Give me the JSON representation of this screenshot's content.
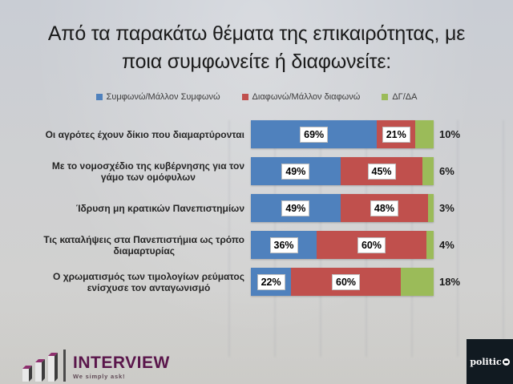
{
  "title": {
    "line1": "Από τα παρακάτω θέματα της επικαιρότητας, με",
    "line2": "ποια συμφωνείτε ή διαφωνείτε:"
  },
  "legend": [
    {
      "label": "Συμφωνώ/Μάλλον Συμφωνώ",
      "color": "#4f81bd"
    },
    {
      "label": "Διαφωνώ/Μάλλον διαφωνώ",
      "color": "#c0504d"
    },
    {
      "label": "ΔΓ/ΔΑ",
      "color": "#9bbb59"
    }
  ],
  "chart_data": {
    "type": "bar",
    "orientation": "horizontal",
    "stacked": true,
    "title": "Από τα παρακάτω θέματα της επικαιρότητας, με ποια συμφωνείτε ή διαφωνείτε:",
    "categories": [
      "Οι αγρότες έχουν δίκιο που διαμαρτύρονται",
      "Με το νομοσχέδιο της κυβέρνησης για τον γάμο των ομόφυλων",
      "Ίδρυση μη κρατικών Πανεπιστημίων",
      "Τις καταλήψεις στα Πανεπιστήμια ως τρόπο διαμαρτυρίας",
      "Ο χρωματισμός των τιμολογίων ρεύματος ενίσχυσε τον ανταγωνισμό"
    ],
    "category_lines": [
      [
        "Οι αγρότες έχουν δίκιο που διαμαρτύρονται"
      ],
      [
        "Με το νομοσχέδιο της κυβέρνησης για τον",
        "γάμο των ομόφυλων"
      ],
      [
        "Ίδρυση μη κρατικών Πανεπιστημίων"
      ],
      [
        "Τις καταλήψεις στα Πανεπιστήμια ως τρόπο",
        "διαμαρτυρίας"
      ],
      [
        "Ο χρωματισμός των τιμολογίων ρεύματος",
        "ενίσχυσε τον ανταγωνισμό"
      ]
    ],
    "series": [
      {
        "name": "Συμφωνώ/Μάλλον Συμφωνώ",
        "color": "#4f81bd",
        "values": [
          69,
          49,
          49,
          36,
          22
        ]
      },
      {
        "name": "Διαφωνώ/Μάλλον διαφωνώ",
        "color": "#c0504d",
        "values": [
          21,
          45,
          48,
          60,
          60
        ]
      },
      {
        "name": "ΔΓ/ΔΑ",
        "color": "#9bbb59",
        "values": [
          10,
          6,
          3,
          4,
          18
        ]
      }
    ],
    "value_suffix": "%",
    "xlim": [
      0,
      100
    ],
    "legend_position": "top",
    "grid": false,
    "value_label_style": "series 1-2 inside white boxes, series 3 outside right of bar"
  },
  "footer": {
    "interview_wordmark": "INTERVIEW",
    "interview_tagline": "We simply ask!",
    "politico_label": "politico"
  },
  "colors": {
    "agree": "#4f81bd",
    "disagree": "#c0504d",
    "dontknow": "#9bbb59",
    "background_top": "#c9cdd4",
    "background_bottom": "#d3d2ce",
    "politico_box": "#111a21",
    "interview_brand": "#5a164b"
  }
}
